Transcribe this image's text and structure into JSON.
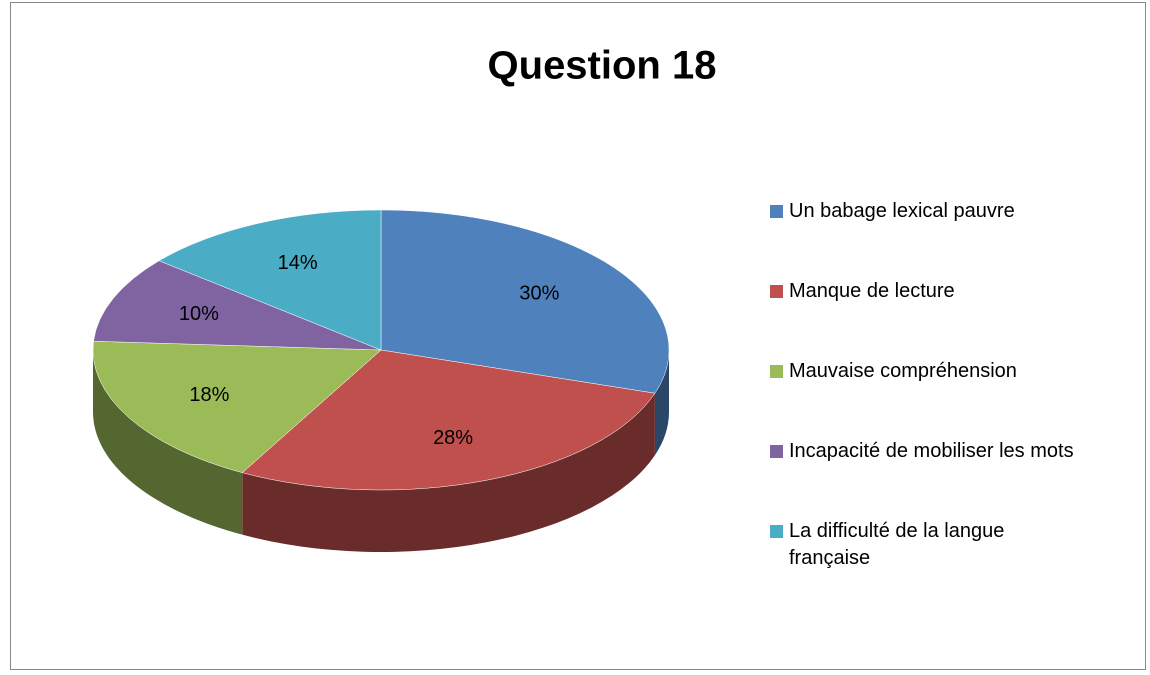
{
  "chart_data": {
    "type": "pie",
    "title": "Question 18",
    "categories": [
      "Un babage lexical pauvre",
      "Manque de lecture",
      "Mauvaise compréhension",
      "Incapacité de mobiliser les mots",
      "La difficulté de la langue française"
    ],
    "values": [
      30,
      28,
      18,
      10,
      14
    ],
    "value_labels": [
      "30%",
      "28%",
      "18%",
      "10%",
      "14%"
    ],
    "colors": [
      "#4f81bd",
      "#c0504d",
      "#9bbb59",
      "#8064a2",
      "#4bacc6"
    ],
    "legend": "right"
  }
}
